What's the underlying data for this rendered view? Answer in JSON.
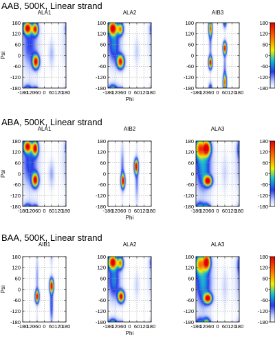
{
  "chart_data": {
    "type": "heatmap",
    "chart_kind": "ramachandran-density-grid",
    "xlabel": "Phi",
    "ylabel": "Psi",
    "xlim": [
      -180,
      180
    ],
    "ylim": [
      -180,
      180
    ],
    "xticks": [
      -180,
      -120,
      -60,
      0,
      60,
      120,
      180
    ],
    "yticks": [
      -180,
      -120,
      -60,
      0,
      60,
      120,
      180
    ],
    "colorbar": {
      "ticks": [
        -180,
        -120,
        -60,
        0,
        60,
        120,
        180
      ],
      "colors": [
        "#ffffff",
        "#2030f0",
        "#10c0c0",
        "#f0f000",
        "#ff6000",
        "#e00000"
      ]
    },
    "grid": true,
    "rows": [
      {
        "title": "AAB, 500K, Linear strand",
        "panels": [
          {
            "label": "ALA1",
            "blobs": [
              {
                "phi": -140,
                "psi": 150,
                "sphi": 22,
                "spsi": 22,
                "amp": 1.0
              },
              {
                "phi": -75,
                "psi": 145,
                "sphi": 16,
                "spsi": 22,
                "amp": 0.9
              },
              {
                "phi": -70,
                "psi": -35,
                "sphi": 18,
                "spsi": 25,
                "amp": 1.0
              },
              {
                "phi": -120,
                "psi": 60,
                "sphi": 45,
                "spsi": 90,
                "amp": 0.25
              },
              {
                "phi": 60,
                "psi": 10,
                "sphi": 16,
                "spsi": 45,
                "amp": 0.12
              }
            ]
          },
          {
            "label": "ALA2",
            "blobs": [
              {
                "phi": -140,
                "psi": 150,
                "sphi": 25,
                "spsi": 25,
                "amp": 1.0
              },
              {
                "phi": -75,
                "psi": 145,
                "sphi": 16,
                "spsi": 22,
                "amp": 0.7
              },
              {
                "phi": -75,
                "psi": -35,
                "sphi": 20,
                "spsi": 25,
                "amp": 0.95
              },
              {
                "phi": -130,
                "psi": 60,
                "sphi": 35,
                "spsi": 70,
                "amp": 0.35
              },
              {
                "phi": 60,
                "psi": 20,
                "sphi": 16,
                "spsi": 45,
                "amp": 0.08
              }
            ]
          },
          {
            "label": "AIB3",
            "blobs": [
              {
                "phi": -60,
                "psi": -40,
                "sphi": 10,
                "spsi": 22,
                "amp": 1.0
              },
              {
                "phi": -60,
                "psi": 150,
                "sphi": 10,
                "spsi": 30,
                "amp": 0.8
              },
              {
                "phi": -60,
                "psi": 60,
                "sphi": 8,
                "spsi": 60,
                "amp": 0.18
              },
              {
                "phi": 60,
                "psi": 40,
                "sphi": 10,
                "spsi": 22,
                "amp": 1.0
              },
              {
                "phi": 60,
                "psi": -150,
                "sphi": 10,
                "spsi": 30,
                "amp": 0.8
              },
              {
                "phi": 60,
                "psi": -60,
                "sphi": 8,
                "spsi": 60,
                "amp": 0.18
              }
            ]
          }
        ]
      },
      {
        "title": "ABA, 500K, Linear strand",
        "panels": [
          {
            "label": "ALA1",
            "blobs": [
              {
                "phi": -140,
                "psi": 150,
                "sphi": 22,
                "spsi": 22,
                "amp": 0.95
              },
              {
                "phi": -75,
                "psi": 140,
                "sphi": 16,
                "spsi": 25,
                "amp": 1.0
              },
              {
                "phi": -75,
                "psi": -35,
                "sphi": 18,
                "spsi": 25,
                "amp": 1.0
              },
              {
                "phi": -120,
                "psi": 60,
                "sphi": 45,
                "spsi": 90,
                "amp": 0.28
              },
              {
                "phi": 60,
                "psi": 0,
                "sphi": 16,
                "spsi": 45,
                "amp": 0.14
              }
            ]
          },
          {
            "label": "AIB2",
            "blobs": [
              {
                "phi": -55,
                "psi": -40,
                "sphi": 11,
                "spsi": 25,
                "amp": 1.0
              },
              {
                "phi": 55,
                "psi": 40,
                "sphi": 11,
                "spsi": 25,
                "amp": 1.0
              },
              {
                "phi": -60,
                "psi": 30,
                "sphi": 10,
                "spsi": 80,
                "amp": 0.2
              },
              {
                "phi": 60,
                "psi": -30,
                "sphi": 10,
                "spsi": 80,
                "amp": 0.2
              }
            ]
          },
          {
            "label": "ALA3",
            "blobs": [
              {
                "phi": -90,
                "psi": 140,
                "sphi": 22,
                "spsi": 28,
                "amp": 1.0
              },
              {
                "phi": -150,
                "psi": 140,
                "sphi": 25,
                "spsi": 35,
                "amp": 0.7
              },
              {
                "phi": -80,
                "psi": -40,
                "sphi": 22,
                "spsi": 18,
                "amp": 1.0
              },
              {
                "phi": -120,
                "psi": 40,
                "sphi": 45,
                "spsi": 90,
                "amp": 0.4
              },
              {
                "phi": 60,
                "psi": 10,
                "sphi": 20,
                "spsi": 60,
                "amp": 0.07
              }
            ]
          }
        ]
      },
      {
        "title": "BAA, 500K, Linear strand",
        "panels": [
          {
            "label": "AIB1",
            "blobs": [
              {
                "phi": -60,
                "psi": -40,
                "sphi": 11,
                "spsi": 22,
                "amp": 1.0
              },
              {
                "phi": 60,
                "psi": 20,
                "sphi": 11,
                "spsi": 25,
                "amp": 1.0
              },
              {
                "phi": -60,
                "psi": 60,
                "sphi": 8,
                "spsi": 80,
                "amp": 0.15
              },
              {
                "phi": 60,
                "psi": -80,
                "sphi": 9,
                "spsi": 70,
                "amp": 0.3
              }
            ]
          },
          {
            "label": "ALA2",
            "blobs": [
              {
                "phi": -140,
                "psi": 150,
                "sphi": 25,
                "spsi": 25,
                "amp": 1.0
              },
              {
                "phi": -75,
                "psi": 145,
                "sphi": 16,
                "spsi": 22,
                "amp": 0.7
              },
              {
                "phi": -70,
                "psi": -40,
                "sphi": 18,
                "spsi": 22,
                "amp": 1.0
              },
              {
                "phi": -130,
                "psi": 50,
                "sphi": 35,
                "spsi": 70,
                "amp": 0.35
              },
              {
                "phi": 60,
                "psi": 20,
                "sphi": 16,
                "spsi": 45,
                "amp": 0.07
              }
            ]
          },
          {
            "label": "ALA3",
            "blobs": [
              {
                "phi": -90,
                "psi": 150,
                "sphi": 20,
                "spsi": 28,
                "amp": 1.0
              },
              {
                "phi": -150,
                "psi": 140,
                "sphi": 25,
                "spsi": 35,
                "amp": 0.6
              },
              {
                "phi": -80,
                "psi": -50,
                "sphi": 22,
                "spsi": 18,
                "amp": 1.0
              },
              {
                "phi": -120,
                "psi": 40,
                "sphi": 45,
                "spsi": 90,
                "amp": 0.4
              },
              {
                "phi": 60,
                "psi": 10,
                "sphi": 20,
                "spsi": 60,
                "amp": 0.07
              }
            ]
          }
        ]
      }
    ]
  }
}
